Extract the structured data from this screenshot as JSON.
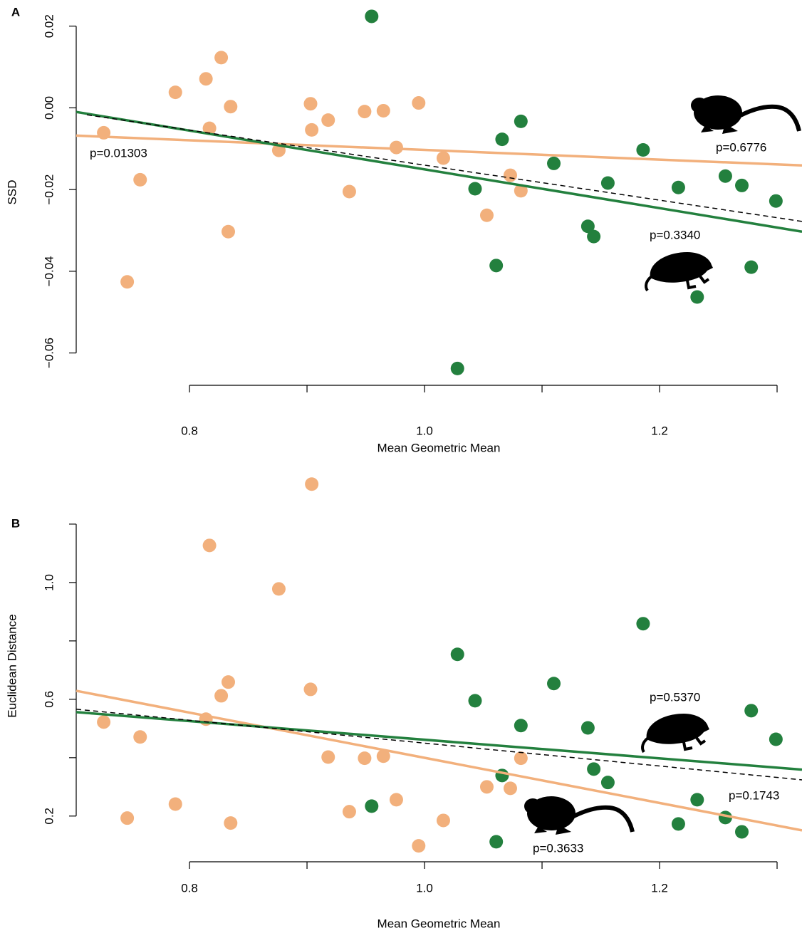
{
  "chart_data": [
    {
      "type": "scatter",
      "panel_label": "A",
      "xlabel": "Mean Geometric Mean",
      "ylabel": "SSD",
      "xlim": [
        0.7036,
        1.3212
      ],
      "ylim": [
        -0.066,
        0.0264
      ],
      "xticks": [
        0.8,
        {
          "value": 1,
          "label": "1.0"
        },
        1.2
      ],
      "xminor_ticks": [
        0.9,
        1.1,
        1.3
      ],
      "yticks": [
        0.02,
        {
          "value": 0,
          "label": "0.00"
        },
        {
          "value": -0.02,
          "label": "−0.02"
        },
        {
          "value": -0.04,
          "label": "−0.04"
        },
        {
          "value": -0.06,
          "label": "−0.06"
        }
      ],
      "series": [
        {
          "color": "#f2b07c",
          "x": [
            0.727,
            0.758,
            0.747,
            0.788,
            0.814,
            0.827,
            0.817,
            0.835,
            0.833,
            0.876,
            0.903,
            0.904,
            0.918,
            0.936,
            0.949,
            0.965,
            0.976,
            0.995,
            1.016,
            1.053,
            1.073,
            1.082
          ],
          "values": [
            -0.0061,
            -0.0176,
            -0.0426,
            0.0038,
            0.0071,
            0.0123,
            -0.005,
            0.0003,
            -0.0303,
            -0.0104,
            0.001,
            -0.0054,
            -0.003,
            -0.0205,
            -0.0009,
            -0.0007,
            -0.0097,
            0.0012,
            -0.0123,
            -0.0263,
            -0.0165,
            -0.0203
          ]
        },
        {
          "color": "#23803e",
          "x": [
            0.955,
            1.028,
            1.043,
            1.061,
            1.066,
            1.082,
            1.11,
            1.139,
            1.144,
            1.156,
            1.186,
            1.216,
            1.232,
            1.256,
            1.27,
            1.278,
            1.299
          ],
          "values": [
            0.0224,
            -0.0638,
            -0.0198,
            -0.0386,
            -0.0077,
            -0.0033,
            -0.0136,
            -0.029,
            -0.0315,
            -0.0184,
            -0.0103,
            -0.0195,
            -0.0463,
            -0.0167,
            -0.019,
            -0.039,
            -0.0228
          ]
        }
      ],
      "fit_lines": [
        {
          "color": "#f2b07c",
          "style": "solid",
          "x": [
            0.7036,
            1.3212
          ],
          "values": [
            -0.0068,
            -0.0141
          ]
        },
        {
          "color": "#23803e",
          "style": "solid",
          "x": [
            0.7036,
            1.3212
          ],
          "values": [
            -0.001,
            -0.0303
          ]
        },
        {
          "color": "#000000",
          "style": "dashed",
          "x": [
            0.7127,
            1.3212
          ],
          "values": [
            -0.0017,
            -0.0278
          ]
        }
      ],
      "annotations": [
        {
          "text": "p=0.01303",
          "color": "#000000"
        },
        {
          "text": "p=0.6776",
          "color": "#f2b07c"
        },
        {
          "text": "p=0.3340",
          "color": "#23803e"
        }
      ]
    },
    {
      "type": "scatter",
      "panel_label": "B",
      "xlabel": "Mean Geometric Mean",
      "ylabel": "Euclidean Distance",
      "xlim": [
        0.7036,
        1.3212
      ],
      "ylim": [
        0.08,
        1.373
      ],
      "xticks": [
        0.8,
        {
          "value": 1,
          "label": "1.0"
        },
        1.2
      ],
      "xminor_ticks": [
        0.9,
        1.1,
        1.3
      ],
      "yticks": [
        0.2,
        0.6,
        {
          "value": 1,
          "label": "1.0"
        }
      ],
      "yminor_ticks": [
        0.4,
        0.8,
        1.2
      ],
      "series": [
        {
          "color": "#f2b07c",
          "x": [
            0.727,
            0.758,
            0.747,
            0.788,
            0.814,
            0.827,
            0.817,
            0.835,
            0.833,
            0.876,
            0.903,
            0.904,
            0.918,
            0.936,
            0.949,
            0.965,
            0.976,
            0.995,
            1.016,
            1.053,
            1.073,
            1.082
          ],
          "values": [
            0.522,
            0.471,
            0.193,
            0.241,
            0.532,
            0.612,
            1.127,
            0.176,
            0.659,
            0.978,
            0.634,
            1.337,
            0.402,
            0.215,
            0.398,
            0.405,
            0.256,
            0.098,
            0.185,
            0.3,
            0.295,
            0.398
          ]
        },
        {
          "color": "#23803e",
          "x": [
            0.955,
            1.028,
            1.043,
            1.061,
            1.066,
            1.082,
            1.11,
            1.139,
            1.144,
            1.156,
            1.186,
            1.216,
            1.232,
            1.256,
            1.27,
            1.278,
            1.299
          ],
          "values": [
            0.234,
            0.754,
            0.595,
            0.112,
            0.339,
            0.51,
            0.654,
            0.502,
            0.361,
            0.315,
            0.859,
            0.173,
            0.256,
            0.195,
            0.146,
            0.561,
            0.463
          ]
        }
      ],
      "fit_lines": [
        {
          "color": "#f2b07c",
          "style": "solid",
          "x": [
            0.7036,
            1.3212
          ],
          "values": [
            0.629,
            0.151
          ]
        },
        {
          "color": "#23803e",
          "style": "solid",
          "x": [
            0.7036,
            1.3212
          ],
          "values": [
            0.556,
            0.359
          ]
        },
        {
          "color": "#000000",
          "style": "dashed",
          "x": [
            0.7036,
            1.3212
          ],
          "values": [
            0.566,
            0.324
          ]
        }
      ],
      "annotations": [
        {
          "text": "p=0.5370",
          "color": "#23803e"
        },
        {
          "text": "p=0.1743",
          "color": "#000000"
        },
        {
          "text": "p=0.3633",
          "color": "#f2b07c"
        }
      ]
    }
  ]
}
